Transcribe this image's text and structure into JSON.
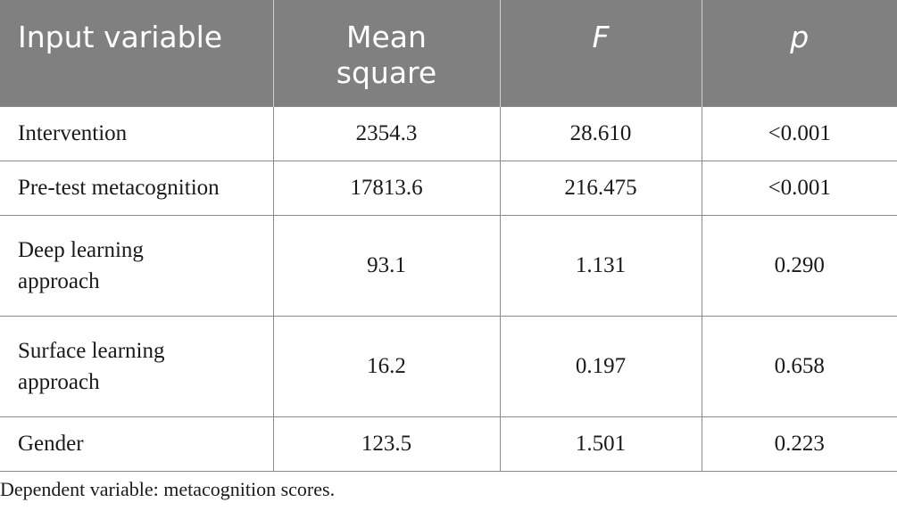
{
  "table": {
    "headers": {
      "input_variable": "Input variable",
      "mean_square_line1": "Mean",
      "mean_square_line2": "square",
      "f": "F",
      "p": "p"
    },
    "rows": [
      {
        "variable": "Intervention",
        "mean_square": "2354.3",
        "f": "28.610",
        "p": "<0.001"
      },
      {
        "variable": "Pre-test metacognition",
        "mean_square": "17813.6",
        "f": "216.475",
        "p": "<0.001"
      },
      {
        "variable": "Deep learning approach",
        "mean_square": "93.1",
        "f": "1.131",
        "p": "0.290"
      },
      {
        "variable": "Surface learning approach",
        "mean_square": "16.2",
        "f": "0.197",
        "p": "0.658"
      },
      {
        "variable": "Gender",
        "mean_square": "123.5",
        "f": "1.501",
        "p": "0.223"
      }
    ]
  },
  "footnote": "Dependent variable: metacognition scores.",
  "colors": {
    "header_background": "#808080",
    "header_text": "#ffffff",
    "body_text": "#1a1a1a",
    "rule": "#8a8a8a"
  }
}
